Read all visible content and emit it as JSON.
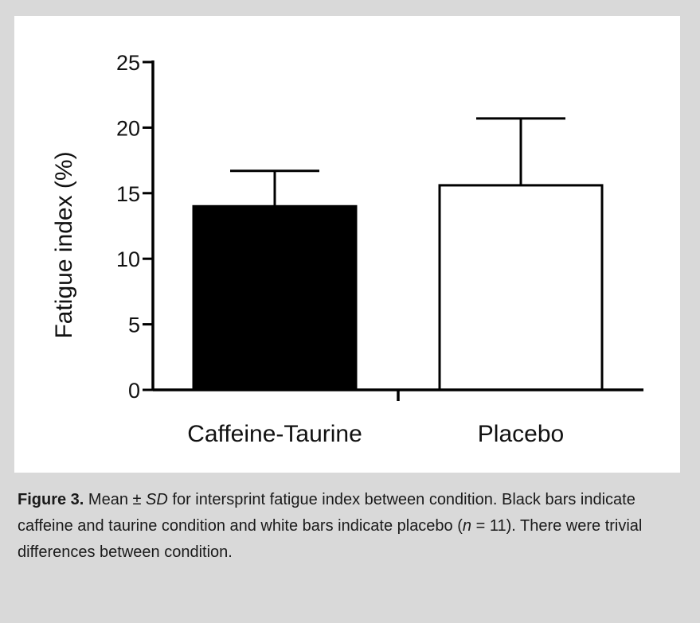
{
  "chart_data": {
    "type": "bar",
    "categories": [
      "Caffeine-Taurine",
      "Placebo"
    ],
    "values": [
      14.0,
      15.6
    ],
    "error_sd": [
      2.7,
      5.1
    ],
    "bar_colors": [
      "#000000",
      "#ffffff"
    ],
    "ylabel": "Fatigue index (%)",
    "ylim": [
      0,
      25
    ],
    "yticks": [
      0,
      5,
      10,
      15,
      20,
      25
    ],
    "grid": false
  },
  "caption": {
    "label": "Figure 3.",
    "t1": " Mean ± ",
    "sd": "SD",
    "t2": " for intersprint fatigue index between condition. Black bars indicate caffeine and taurine condition and white bars indicate placebo (",
    "n": "n",
    "t3": " = 11). There were trivial differences between condition."
  }
}
